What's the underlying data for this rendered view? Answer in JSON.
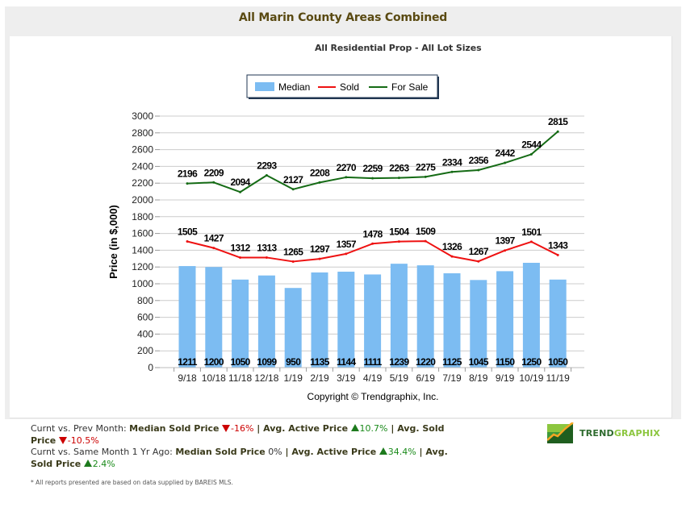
{
  "header": {
    "title": "All Marin County Areas Combined",
    "subtitle": "All Residential Prop - All Lot Sizes"
  },
  "chart_data": {
    "type": "bar",
    "title": "All Marin County Areas Combined",
    "subtitle": "All Residential Prop - All Lot Sizes",
    "xlabel": "",
    "ylabel": "Price (in $,000)",
    "ylim": [
      0,
      3000
    ],
    "yticks": [
      0,
      200,
      400,
      600,
      800,
      1000,
      1200,
      1400,
      1600,
      1800,
      2000,
      2200,
      2400,
      2600,
      2800,
      3000
    ],
    "grid": true,
    "legend_position": "top-center",
    "categories": [
      "9/18",
      "10/18",
      "11/18",
      "12/18",
      "1/19",
      "2/19",
      "3/19",
      "4/19",
      "5/19",
      "6/19",
      "7/19",
      "8/19",
      "9/19",
      "10/19",
      "11/19"
    ],
    "series": [
      {
        "name": "Median",
        "type": "bar",
        "color": "#7cbcf2",
        "values": [
          1211,
          1200,
          1050,
          1099,
          950,
          1135,
          1144,
          1111,
          1239,
          1220,
          1125,
          1045,
          1150,
          1250,
          1050
        ]
      },
      {
        "name": "Sold",
        "type": "line",
        "color": "#ee1111",
        "values": [
          1505,
          1427,
          1312,
          1313,
          1265,
          1297,
          1357,
          1478,
          1504,
          1509,
          1326,
          1267,
          1397,
          1501,
          1343
        ]
      },
      {
        "name": "For Sale",
        "type": "line",
        "color": "#156b15",
        "values": [
          2196,
          2209,
          2094,
          2293,
          2127,
          2208,
          2270,
          2259,
          2263,
          2275,
          2334,
          2356,
          2442,
          2544,
          2815
        ]
      }
    ],
    "copyright": "Copyright © Trendgraphix, Inc."
  },
  "stats": {
    "prev_month_prefix": "Curnt vs. Prev Month: ",
    "same_month_prefix": "Curnt vs. Same Month 1 Yr Ago: ",
    "median_label": "Median Sold Price",
    "active_label": "Avg. Active Price",
    "sold_label": "Avg. Sold Price",
    "sep": " | ",
    "prev": {
      "median": "-16%",
      "median_dir": "down",
      "active": "10.7%",
      "active_dir": "up",
      "sold": "-10.5%",
      "sold_dir": "down"
    },
    "year": {
      "median": "0%",
      "median_dir": "flat",
      "active": "34.4%",
      "active_dir": "up",
      "sold": "2.4%",
      "sold_dir": "up"
    }
  },
  "logo": {
    "text_a": "TREND",
    "text_b": "GRAPHIX"
  },
  "footnote": "* All reports presented are based on data supplied by BAREIS MLS."
}
